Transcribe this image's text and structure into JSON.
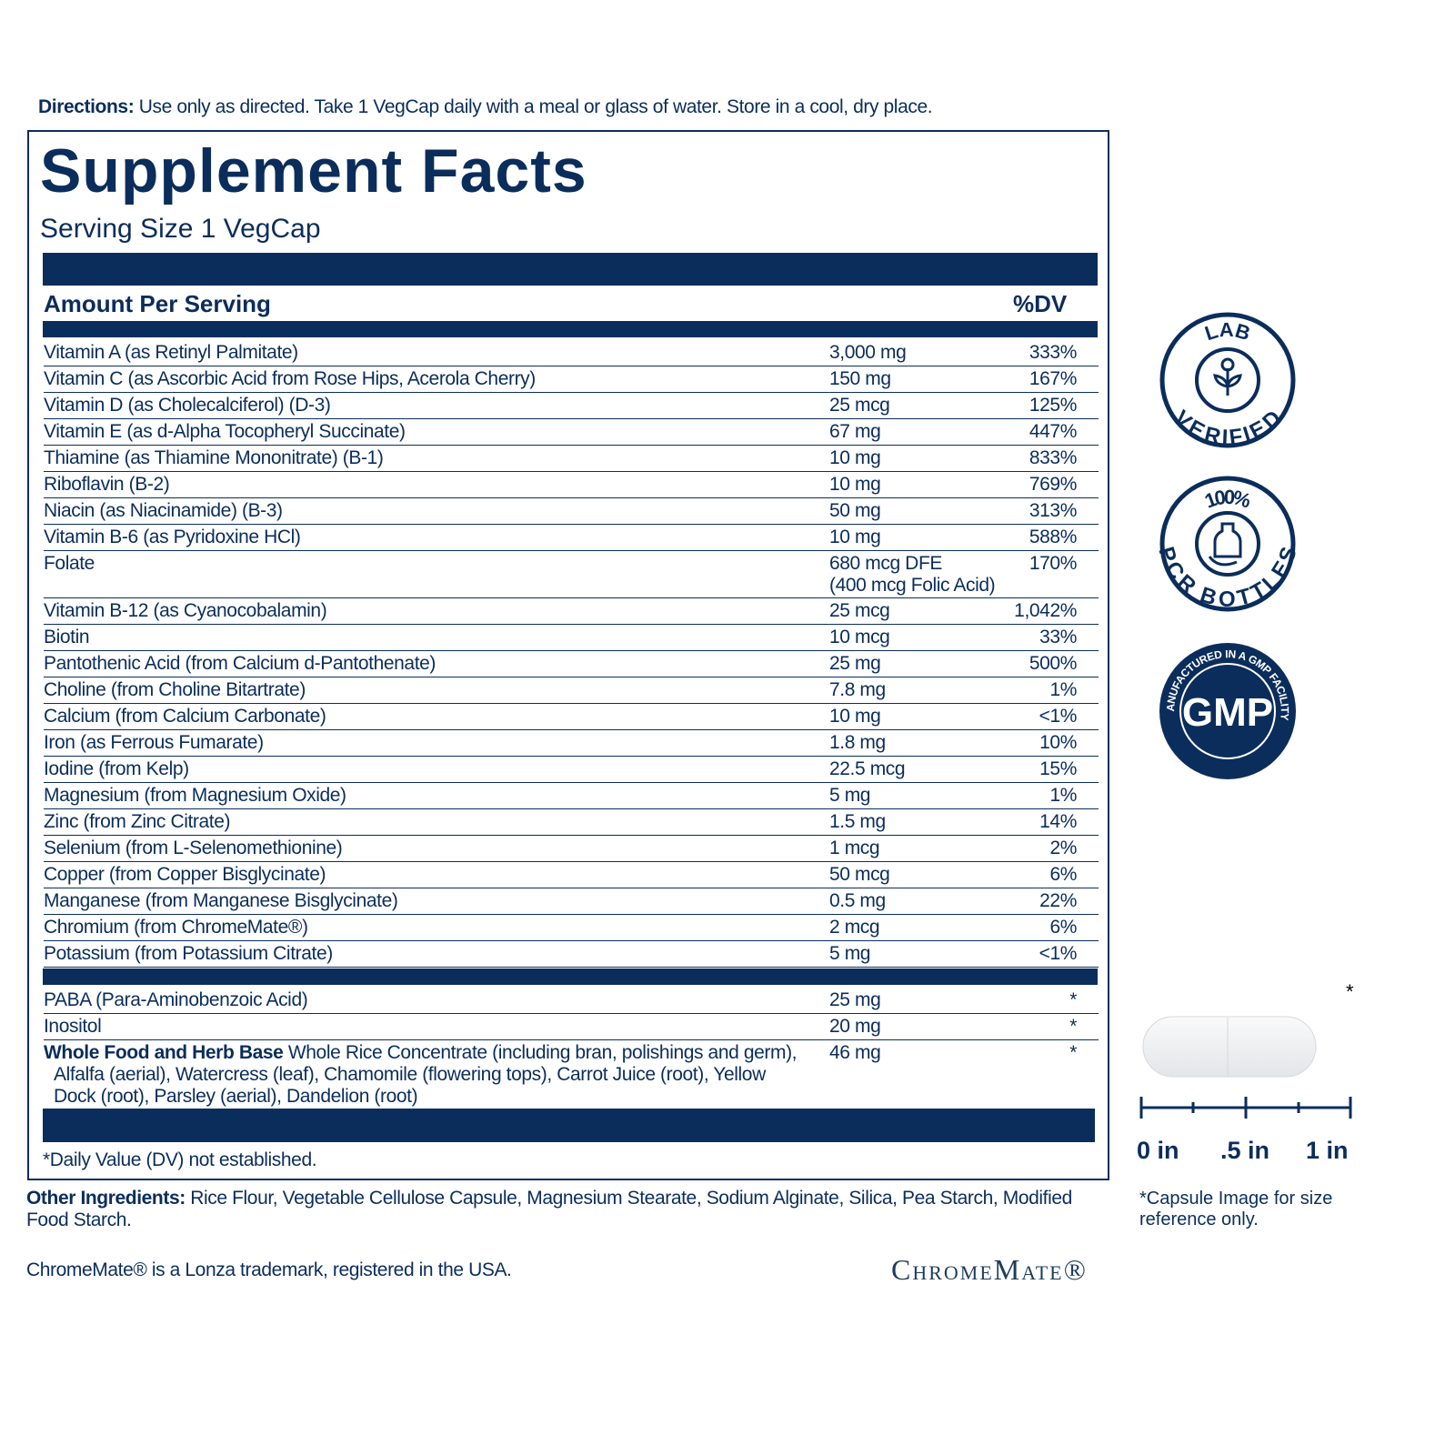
{
  "directions": {
    "label": "Directions:",
    "text": "Use only as directed. Take 1 VegCap daily with a meal or glass of water. Store in a cool, dry place."
  },
  "title": "Supplement Facts",
  "serving_size": "Serving Size 1 VegCap",
  "header": {
    "amount": "Amount Per Serving",
    "dv": "%DV"
  },
  "rows": [
    {
      "name": "Vitamin A (as Retinyl Palmitate)",
      "amount": "3,000 mg",
      "dv": "333%"
    },
    {
      "name": "Vitamin C (as Ascorbic Acid from Rose Hips, Acerola Cherry)",
      "amount": "150 mg",
      "dv": "167%"
    },
    {
      "name": "Vitamin D (as Cholecalciferol) (D-3)",
      "amount": "25 mcg",
      "dv": "125%"
    },
    {
      "name": "Vitamin E (as d-Alpha Tocopheryl Succinate)",
      "amount": "67 mg",
      "dv": "447%"
    },
    {
      "name": "Thiamine (as Thiamine Mononitrate) (B-1)",
      "amount": "10 mg",
      "dv": "833%"
    },
    {
      "name": "Riboflavin (B-2)",
      "amount": "10 mg",
      "dv": "769%"
    },
    {
      "name": "Niacin (as Niacinamide) (B-3)",
      "amount": "50 mg",
      "dv": "313%"
    },
    {
      "name": "Vitamin B-6 (as Pyridoxine HCl)",
      "amount": "10 mg",
      "dv": "588%"
    },
    {
      "name": "Folate",
      "amount": "680 mcg DFE",
      "amount_note": "(400 mcg Folic Acid)",
      "dv": "170%"
    },
    {
      "name": "Vitamin B-12 (as Cyanocobalamin)",
      "amount": "25 mcg",
      "dv": "1,042%"
    },
    {
      "name": "Biotin",
      "amount": "10 mcg",
      "dv": "33%"
    },
    {
      "name": "Pantothenic Acid (from Calcium d-Pantothenate)",
      "amount": "25 mg",
      "dv": "500%"
    },
    {
      "name": "Choline (from Choline Bitartrate)",
      "amount": "7.8 mg",
      "dv": "1%"
    },
    {
      "name": "Calcium (from Calcium Carbonate)",
      "amount": "10 mg",
      "dv": "<1%"
    },
    {
      "name": "Iron (as Ferrous Fumarate)",
      "amount": "1.8 mg",
      "dv": "10%"
    },
    {
      "name": "Iodine (from Kelp)",
      "amount": "22.5 mcg",
      "dv": "15%"
    },
    {
      "name": "Magnesium (from Magnesium Oxide)",
      "amount": "5 mg",
      "dv": "1%"
    },
    {
      "name": "Zinc (from Zinc Citrate)",
      "amount": "1.5 mg",
      "dv": "14%"
    },
    {
      "name": "Selenium (from L-Selenomethionine)",
      "amount": "1 mcg",
      "dv": "2%"
    },
    {
      "name": "Copper (from Copper Bisglycinate)",
      "amount": "50 mcg",
      "dv": "6%"
    },
    {
      "name": "Manganese (from Manganese Bisglycinate)",
      "amount": "0.5 mg",
      "dv": "22%"
    },
    {
      "name": "Chromium (from ChromeMate®)",
      "amount": "2 mcg",
      "dv": "6%"
    },
    {
      "name": "Potassium (from Potassium Citrate)",
      "amount": "5 mg",
      "dv": "<1%"
    }
  ],
  "other_rows": [
    {
      "name": "PABA (Para-Aminobenzoic Acid)",
      "amount": "25 mg",
      "dv": "*"
    },
    {
      "name": "Inositol",
      "amount": "20 mg",
      "dv": "*"
    },
    {
      "name_bold": "Whole Food and Herb Base",
      "name": "Whole Rice Concentrate (including bran, polishings and germ), Alfalfa (aerial), Watercress (leaf), Chamomile (flowering tops), Carrot Juice (root), Yellow Dock (root), Parsley (aerial), Dandelion (root)",
      "amount": "46 mg",
      "dv": "*"
    }
  ],
  "footnote": "*Daily Value (DV) not established.",
  "other_ingredients": {
    "label": "Other Ingredients:",
    "text": "Rice Flour, Vegetable Cellulose Capsule, Magnesium Stearate, Sodium Alginate, Silica, Pea Starch, Modified Food Starch."
  },
  "trademark": "ChromeMate® is a Lonza trademark, registered in the USA.",
  "logo": "ChromeMate®",
  "badges": {
    "lab": {
      "top": "LAB",
      "bottom": "VERIFIED"
    },
    "pcr": {
      "top": "100%",
      "bottom": "PCR BOTTLES"
    },
    "gmp": {
      "ring": "MANUFACTURED IN A GMP FACILITY",
      "center": "GMP"
    }
  },
  "capsule": {
    "asterisk": "*",
    "scale": [
      "0 in",
      ".5 in",
      "1 in"
    ],
    "note": "*Capsule Image for size reference only."
  }
}
